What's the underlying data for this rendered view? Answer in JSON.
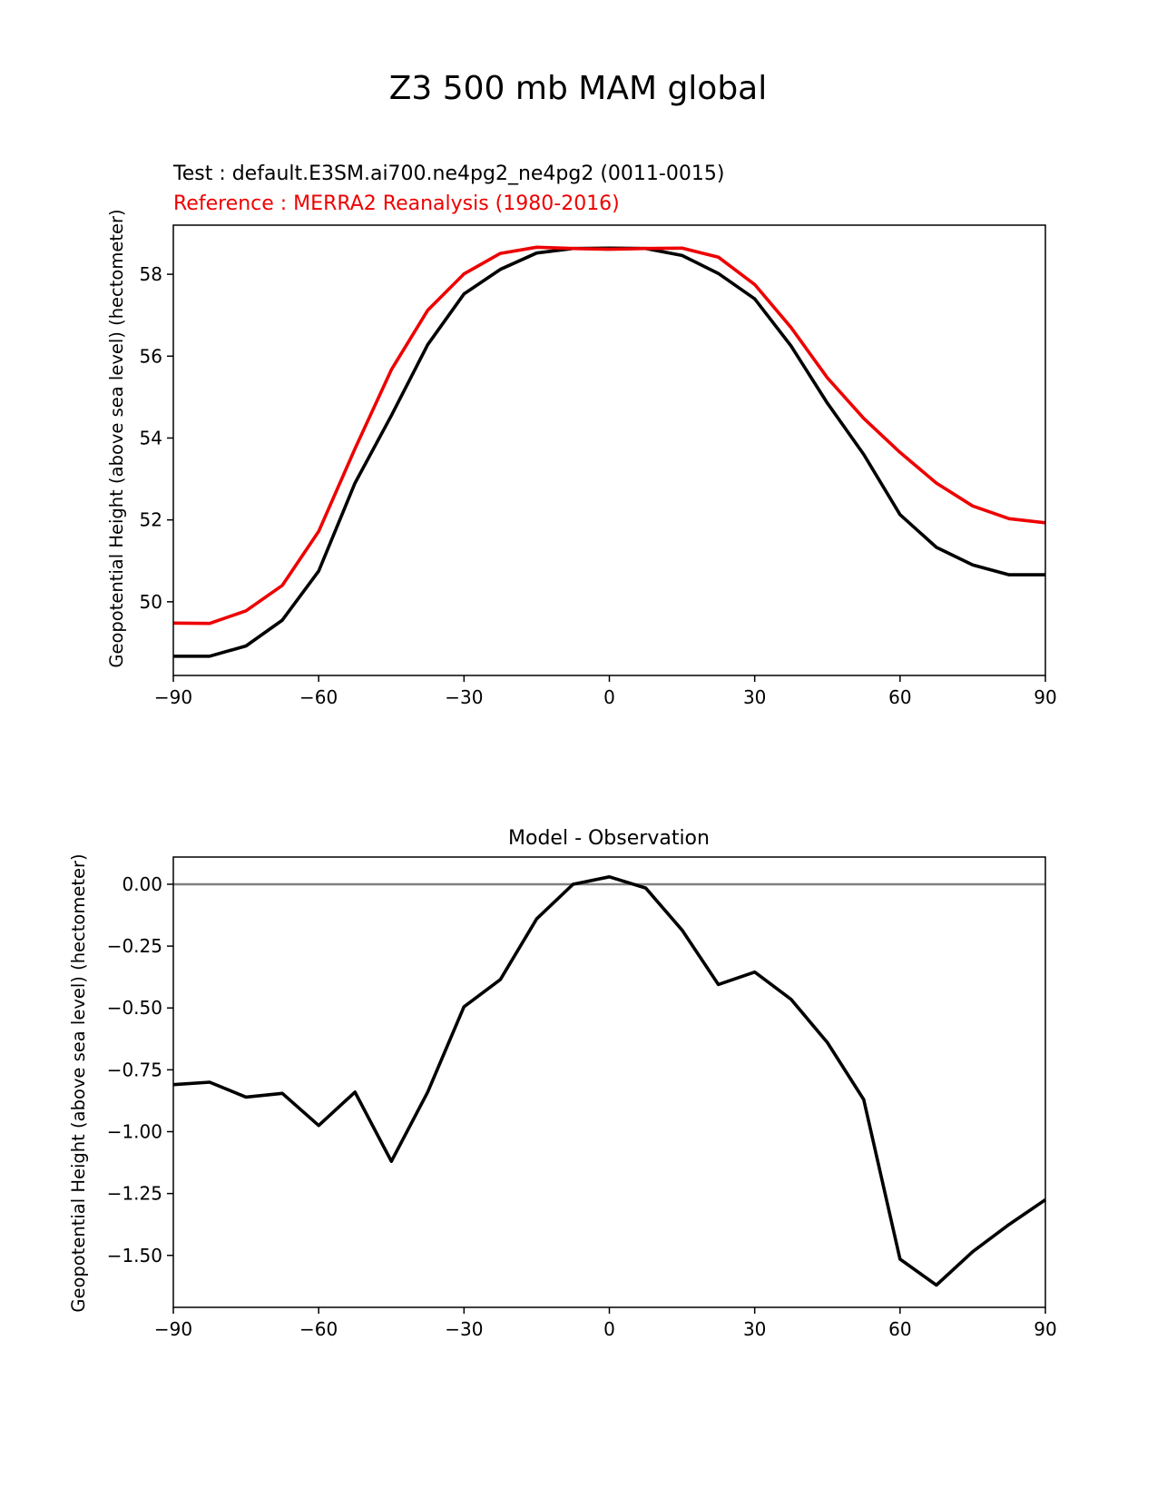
{
  "figure": {
    "title": "Z3 500 mb MAM global"
  },
  "chart_data": [
    {
      "type": "line",
      "test_label": "Test : default.E3SM.ai700.ne4pg2_ne4pg2 (0011-0015)",
      "reference_label": "Reference : MERRA2 Reanalysis (1980-2016)",
      "xlabel": "",
      "ylabel": "Geopotential Height (above sea level) (hectometer)",
      "xlim": [
        -90,
        90
      ],
      "ylim": [
        48.2,
        59.2
      ],
      "xticks": [
        -90,
        -60,
        -30,
        0,
        30,
        60,
        90
      ],
      "yticks": [
        50,
        52,
        54,
        56,
        58
      ],
      "xtick_labels": [
        "−90",
        "−60",
        "−30",
        "0",
        "30",
        "60",
        "90"
      ],
      "ytick_labels": [
        "50",
        "52",
        "54",
        "56",
        "58"
      ],
      "series": [
        {
          "name": "Test",
          "color": "#000000",
          "x": [
            -90,
            -82.5,
            -75,
            -67.5,
            -60,
            -52.5,
            -45,
            -37.5,
            -30,
            -22.5,
            -15,
            -7.5,
            0,
            7.5,
            15,
            22.5,
            30,
            37.5,
            45,
            52.5,
            60,
            67.5,
            75,
            82.5,
            90
          ],
          "y": [
            48.67,
            48.67,
            48.92,
            49.55,
            50.75,
            52.9,
            54.55,
            56.28,
            57.52,
            58.12,
            58.52,
            58.63,
            58.64,
            58.63,
            58.46,
            58.02,
            57.4,
            56.25,
            54.85,
            53.6,
            52.13,
            51.33,
            50.9,
            50.66,
            50.66
          ]
        },
        {
          "name": "Reference",
          "color": "#ee0000",
          "x": [
            -90,
            -82.5,
            -75,
            -67.5,
            -60,
            -52.5,
            -45,
            -37.5,
            -30,
            -22.5,
            -15,
            -7.5,
            0,
            7.5,
            15,
            22.5,
            30,
            37.5,
            45,
            52.5,
            60,
            67.5,
            75,
            82.5,
            90
          ],
          "y": [
            49.48,
            49.47,
            49.78,
            50.4,
            51.72,
            53.74,
            55.67,
            57.12,
            58.01,
            58.51,
            58.66,
            58.63,
            58.61,
            58.63,
            58.64,
            58.42,
            57.75,
            56.7,
            55.47,
            54.48,
            53.65,
            52.9,
            52.34,
            52.03,
            51.93
          ]
        }
      ]
    },
    {
      "type": "line",
      "title": "Model - Observation",
      "xlabel": "",
      "ylabel": "Geopotential Height (above sea level) (hectometer)",
      "xlim": [
        -90,
        90
      ],
      "ylim": [
        -1.71,
        0.11
      ],
      "xticks": [
        -90,
        -60,
        -30,
        0,
        30,
        60,
        90
      ],
      "yticks": [
        0.0,
        -0.25,
        -0.5,
        -0.75,
        -1.0,
        -1.25,
        -1.5
      ],
      "xtick_labels": [
        "−90",
        "−60",
        "−30",
        "0",
        "30",
        "60",
        "90"
      ],
      "ytick_labels": [
        "0.00",
        "−0.25",
        "−0.50",
        "−0.75",
        "−1.00",
        "−1.25",
        "−1.50"
      ],
      "zero_line": {
        "y": 0,
        "color": "#808080"
      },
      "series": [
        {
          "name": "Difference",
          "color": "#000000",
          "x": [
            -90,
            -82.5,
            -75,
            -67.5,
            -60,
            -52.5,
            -45,
            -37.5,
            -30,
            -22.5,
            -15,
            -7.5,
            0,
            7.5,
            15,
            22.5,
            30,
            37.5,
            45,
            52.5,
            60,
            67.5,
            75,
            82.5,
            90
          ],
          "y": [
            -0.81,
            -0.8,
            -0.86,
            -0.845,
            -0.975,
            -0.84,
            -1.12,
            -0.84,
            -0.495,
            -0.385,
            -0.14,
            0.0,
            0.03,
            -0.015,
            -0.185,
            -0.405,
            -0.355,
            -0.465,
            -0.64,
            -0.87,
            -1.515,
            -1.62,
            -1.485,
            -1.375,
            -1.275
          ]
        }
      ]
    }
  ]
}
